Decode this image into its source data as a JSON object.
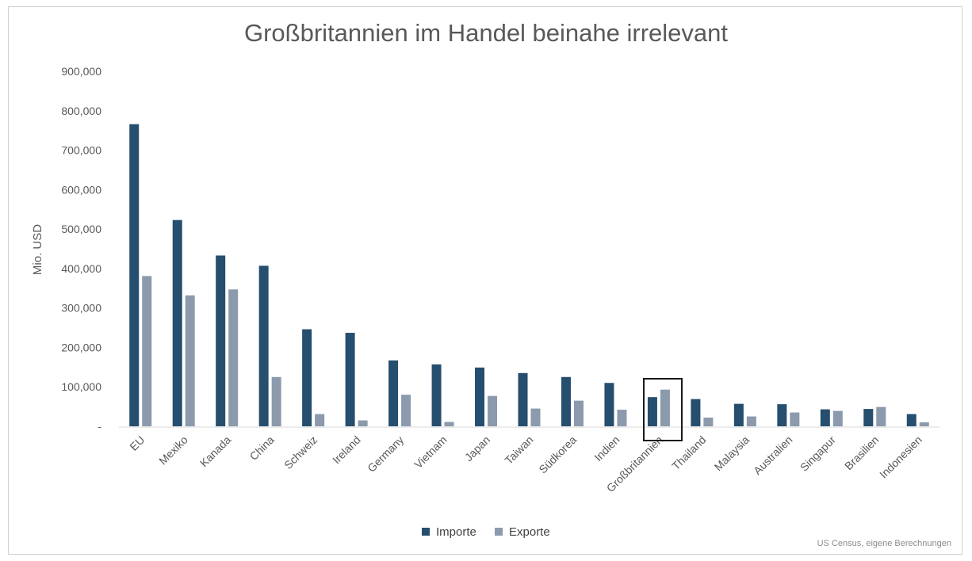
{
  "chart_data": {
    "type": "bar",
    "title": "Großbritannien im Handel beinahe irrelevant",
    "ylabel": "Mio. USD",
    "xlabel": "",
    "ylim": [
      0,
      900000
    ],
    "yticks": [
      0,
      100000,
      200000,
      300000,
      400000,
      500000,
      600000,
      700000,
      800000,
      900000
    ],
    "ytick_labels": [
      "-",
      "100,000",
      "200,000",
      "300,000",
      "400,000",
      "500,000",
      "600,000",
      "700,000",
      "800,000",
      "900,000"
    ],
    "categories": [
      "EU",
      "Mexiko",
      "Kanada",
      "China",
      "Schweiz",
      "Ireland",
      "Germany",
      "Vietnam",
      "Japan",
      "Taiwan",
      "Südkorea",
      "Indien",
      "Großbritannien",
      "Thailand",
      "Malaysia",
      "Australien",
      "Singapur",
      "Brasilien",
      "Indonesien"
    ],
    "series": [
      {
        "name": "Importe",
        "color": "#264e6e",
        "values": [
          766000,
          523000,
          433000,
          407000,
          246000,
          237000,
          167000,
          157000,
          149000,
          135000,
          125000,
          110000,
          74000,
          69000,
          57000,
          56000,
          43000,
          44000,
          31000
        ]
      },
      {
        "name": "Exporte",
        "color": "#8b9aac",
        "values": [
          381000,
          332000,
          347000,
          125000,
          31000,
          15000,
          80000,
          11000,
          77000,
          45000,
          65000,
          42000,
          93000,
          22000,
          25000,
          35000,
          39000,
          49000,
          10000
        ]
      }
    ],
    "highlight_category": "Großbritannien",
    "legend_position": "bottom",
    "grid": false,
    "source_note": "US Census, eigene Berechnungen"
  }
}
